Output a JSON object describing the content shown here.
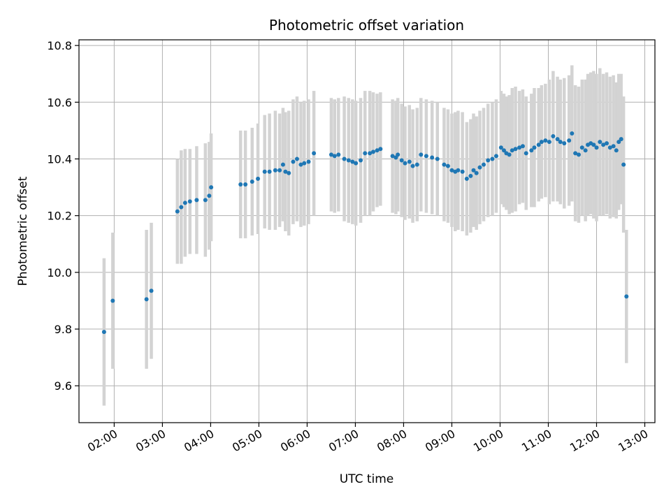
{
  "chart_data": {
    "type": "scatter",
    "title": "Photometric offset variation",
    "xlabel": "UTC time",
    "ylabel": "Photometric offset",
    "x_ticks": [
      "02:00",
      "03:00",
      "04:00",
      "05:00",
      "06:00",
      "07:00",
      "08:00",
      "09:00",
      "10:00",
      "11:00",
      "12:00",
      "13:00"
    ],
    "x_tick_hours": [
      2,
      3,
      4,
      5,
      6,
      7,
      8,
      9,
      10,
      11,
      12,
      13
    ],
    "y_ticks": [
      "9.6",
      "9.8",
      "10.0",
      "10.2",
      "10.4",
      "10.6",
      "10.8"
    ],
    "y_tick_values": [
      9.6,
      9.8,
      10.0,
      10.2,
      10.4,
      10.6,
      10.8
    ],
    "xlim_hours": [
      1.27,
      13.21
    ],
    "ylim": [
      9.47,
      10.82
    ],
    "grid": true,
    "point_color": "#1f77b4",
    "errorbar_color": "#d3d3d3",
    "series": [
      {
        "x_hours": [
          1.79,
          1.97,
          2.67,
          2.77,
          3.31,
          3.39,
          3.47,
          3.57,
          3.71,
          3.89,
          3.97,
          4.01,
          4.62,
          4.72,
          4.86,
          4.98,
          5.12,
          5.22,
          5.34,
          5.43,
          5.5,
          5.55,
          5.62,
          5.71,
          5.79,
          5.87,
          5.94,
          6.03,
          6.14,
          6.5,
          6.57,
          6.65,
          6.77,
          6.86,
          6.94,
          7.01,
          7.11,
          7.2,
          7.3,
          7.37,
          7.45,
          7.52,
          7.77,
          7.84,
          7.88,
          7.96,
          8.03,
          8.12,
          8.19,
          8.28,
          8.36,
          8.47,
          8.59,
          8.7,
          8.84,
          8.92,
          9.0,
          9.07,
          9.13,
          9.22,
          9.31,
          9.39,
          9.45,
          9.51,
          9.58,
          9.66,
          9.75,
          9.84,
          9.92,
          10.02,
          10.08,
          10.13,
          10.19,
          10.25,
          10.32,
          10.4,
          10.47,
          10.54,
          10.65,
          10.71,
          10.8,
          10.86,
          10.94,
          11.02,
          11.1,
          11.19,
          11.25,
          11.33,
          11.43,
          11.49,
          11.56,
          11.63,
          11.7,
          11.77,
          11.82,
          11.88,
          11.94,
          12.0,
          12.07,
          12.14,
          12.21,
          12.28,
          12.35,
          12.41,
          12.46,
          12.51,
          12.56,
          12.62
        ],
        "y": [
          9.79,
          9.9,
          9.905,
          9.935,
          10.215,
          10.23,
          10.245,
          10.25,
          10.255,
          10.255,
          10.27,
          10.3,
          10.31,
          10.31,
          10.32,
          10.33,
          10.355,
          10.355,
          10.36,
          10.36,
          10.38,
          10.355,
          10.35,
          10.39,
          10.4,
          10.38,
          10.385,
          10.39,
          10.42,
          10.415,
          10.41,
          10.415,
          10.4,
          10.395,
          10.39,
          10.385,
          10.395,
          10.42,
          10.42,
          10.425,
          10.43,
          10.435,
          10.41,
          10.405,
          10.415,
          10.395,
          10.385,
          10.39,
          10.375,
          10.38,
          10.415,
          10.41,
          10.405,
          10.4,
          10.38,
          10.375,
          10.36,
          10.355,
          10.36,
          10.355,
          10.33,
          10.34,
          10.36,
          10.35,
          10.37,
          10.38,
          10.395,
          10.4,
          10.41,
          10.44,
          10.43,
          10.42,
          10.415,
          10.43,
          10.435,
          10.44,
          10.445,
          10.42,
          10.43,
          10.44,
          10.45,
          10.46,
          10.465,
          10.46,
          10.48,
          10.47,
          10.46,
          10.455,
          10.465,
          10.49,
          10.42,
          10.415,
          10.44,
          10.43,
          10.45,
          10.455,
          10.45,
          10.44,
          10.46,
          10.45,
          10.455,
          10.44,
          10.445,
          10.43,
          10.46,
          10.47,
          10.38,
          9.915
        ],
        "yerr": [
          0.26,
          0.24,
          0.245,
          0.24,
          0.185,
          0.2,
          0.19,
          0.185,
          0.19,
          0.2,
          0.19,
          0.19,
          0.19,
          0.19,
          0.19,
          0.195,
          0.2,
          0.205,
          0.21,
          0.2,
          0.2,
          0.21,
          0.22,
          0.22,
          0.22,
          0.22,
          0.22,
          0.22,
          0.22,
          0.2,
          0.2,
          0.2,
          0.22,
          0.22,
          0.22,
          0.22,
          0.22,
          0.22,
          0.22,
          0.21,
          0.2,
          0.2,
          0.2,
          0.2,
          0.2,
          0.2,
          0.2,
          0.2,
          0.2,
          0.2,
          0.2,
          0.2,
          0.2,
          0.2,
          0.2,
          0.2,
          0.2,
          0.21,
          0.21,
          0.21,
          0.2,
          0.2,
          0.2,
          0.2,
          0.2,
          0.2,
          0.2,
          0.2,
          0.2,
          0.2,
          0.2,
          0.2,
          0.21,
          0.22,
          0.22,
          0.2,
          0.2,
          0.2,
          0.2,
          0.21,
          0.2,
          0.2,
          0.2,
          0.22,
          0.23,
          0.22,
          0.22,
          0.23,
          0.23,
          0.24,
          0.24,
          0.24,
          0.24,
          0.25,
          0.25,
          0.25,
          0.26,
          0.26,
          0.26,
          0.25,
          0.25,
          0.25,
          0.25,
          0.24,
          0.24,
          0.23,
          0.24,
          0.235
        ]
      }
    ]
  }
}
